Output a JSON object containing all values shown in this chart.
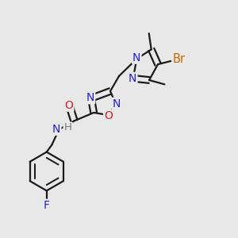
{
  "bg_color": "#e8e8e8",
  "bond_color": "#1a1a1a",
  "bond_width": 1.6,
  "figsize": [
    3.0,
    3.0
  ],
  "dpi": 100,
  "xlim": [
    0,
    1
  ],
  "ylim": [
    0,
    1
  ]
}
